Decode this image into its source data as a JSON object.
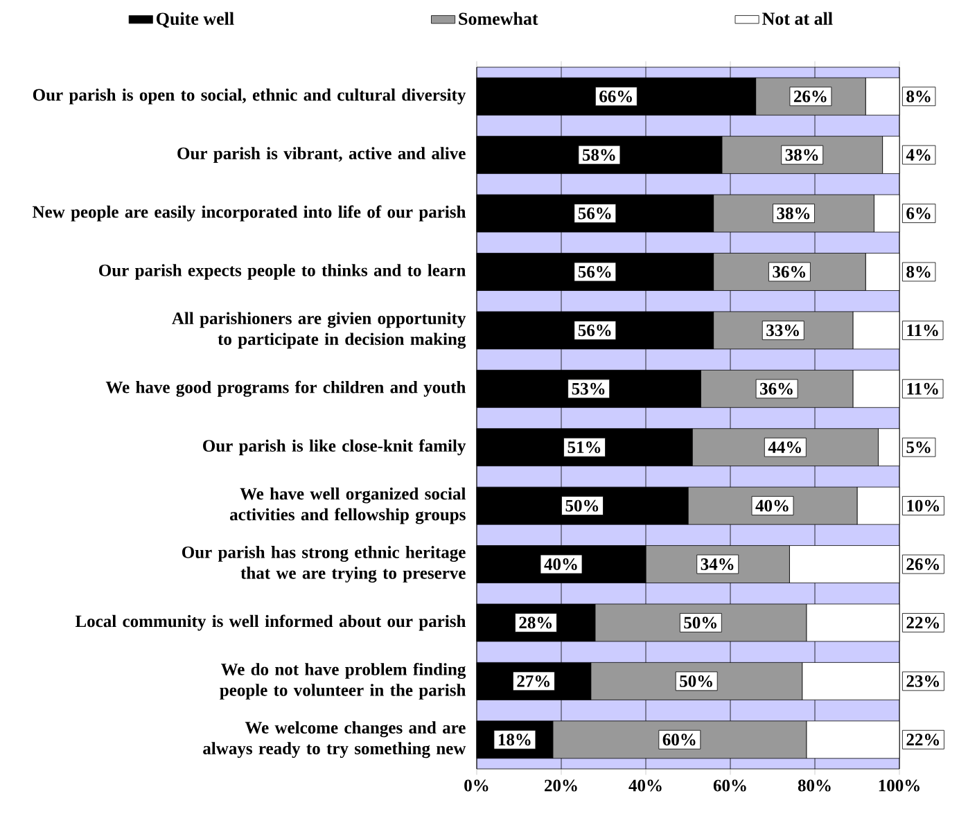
{
  "chart_data": {
    "type": "bar",
    "orientation": "horizontal",
    "stacked": true,
    "categories": [
      "Our parish is open to social, ethnic and cultural diversity",
      "Our parish is vibrant, active and alive",
      "New people are easily incorporated into life of our parish",
      "Our parish expects people to thinks and to learn",
      "All parishioners are givien opportunity to participate in decision making",
      "We have good programs for children and youth",
      "Our parish is like close-knit family",
      "We have well organized social activities and fellowship groups",
      "Our parish has strong ethnic heritage that we are trying to preserve",
      "Local community is well informed about our parish",
      "We do not have problem finding people to volunteer in the parish",
      "We welcome changes and are always ready to try something new"
    ],
    "series": [
      {
        "name": "Quite well",
        "color": "#000000",
        "values": [
          66,
          58,
          56,
          56,
          56,
          53,
          51,
          50,
          40,
          28,
          27,
          18
        ],
        "value_labels": [
          "66%",
          "58%",
          "56%",
          "56%",
          "56%",
          "53%",
          "51%",
          "50%",
          "40%",
          "28%",
          "27%",
          "18%"
        ]
      },
      {
        "name": "Somewhat",
        "color": "#999999",
        "values": [
          26,
          38,
          38,
          36,
          33,
          36,
          44,
          40,
          34,
          50,
          50,
          60
        ],
        "value_labels": [
          "26%",
          "38%",
          "38%",
          "36%",
          "33%",
          "36%",
          "44%",
          "40%",
          "34%",
          "50%",
          "50%",
          "60%"
        ]
      },
      {
        "name": "Not at all",
        "color": "#ffffff",
        "values": [
          8,
          4,
          6,
          8,
          11,
          11,
          5,
          10,
          26,
          22,
          23,
          22
        ],
        "value_labels": [
          "8%",
          "4%",
          "6%",
          "8%",
          "11%",
          "11%",
          "5%",
          "10%",
          "26%",
          "22%",
          "23%",
          "22%"
        ]
      }
    ],
    "xlim": [
      0,
      100
    ],
    "xticks": [
      {
        "value": 0,
        "label": "0%"
      },
      {
        "value": 20,
        "label": "20%"
      },
      {
        "value": 40,
        "label": "40%"
      },
      {
        "value": 60,
        "label": "60%"
      },
      {
        "value": 80,
        "label": "80%"
      },
      {
        "value": 100,
        "label": "100%"
      }
    ],
    "grid": "x",
    "legend": "top"
  }
}
